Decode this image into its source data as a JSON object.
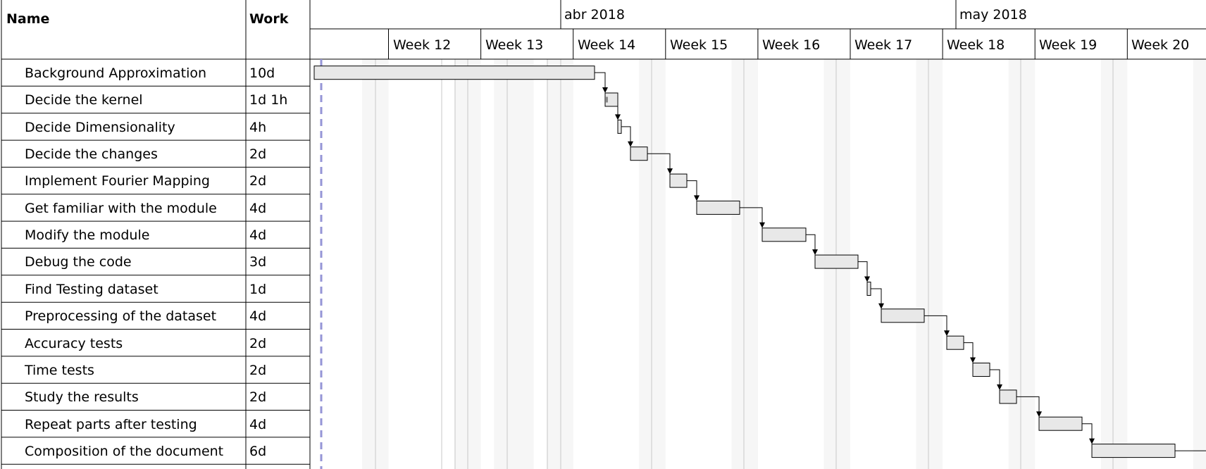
{
  "columns": {
    "name": "Name",
    "work": "Work"
  },
  "months": [
    "abr 2018",
    "may 2018"
  ],
  "weeks": [
    "Week 12",
    "Week 13",
    "Week 14",
    "Week 15",
    "Week 16",
    "Week 17",
    "Week 18",
    "Week 19",
    "Week 20"
  ],
  "tasks": [
    {
      "name": "Background Approximation",
      "work": "10d"
    },
    {
      "name": "Decide the kernel",
      "work": "1d 1h"
    },
    {
      "name": "Decide Dimensionality",
      "work": "4h"
    },
    {
      "name": "Decide the changes",
      "work": "2d"
    },
    {
      "name": "Implement Fourier Mapping",
      "work": "2d"
    },
    {
      "name": "Get familiar with the module",
      "work": "4d"
    },
    {
      "name": "Modify the module",
      "work": "4d"
    },
    {
      "name": "Debug the code",
      "work": "3d"
    },
    {
      "name": "Find Testing dataset",
      "work": "1d"
    },
    {
      "name": "Preprocessing of the dataset",
      "work": "4d"
    },
    {
      "name": "Accuracy tests",
      "work": "2d"
    },
    {
      "name": "Time tests",
      "work": "2d"
    },
    {
      "name": "Study the results",
      "work": "2d"
    },
    {
      "name": "Repeat parts after testing",
      "work": "4d"
    },
    {
      "name": "Composition of the document",
      "work": "6d"
    }
  ],
  "colors": {
    "grid_line": "#000000",
    "bar_fill": "#e8e8e8",
    "bar_stroke": "#000000",
    "weekend_shade": "#f6f6f6",
    "today_line": "#9595d6",
    "progress_mark": "#8a8a8a"
  }
}
